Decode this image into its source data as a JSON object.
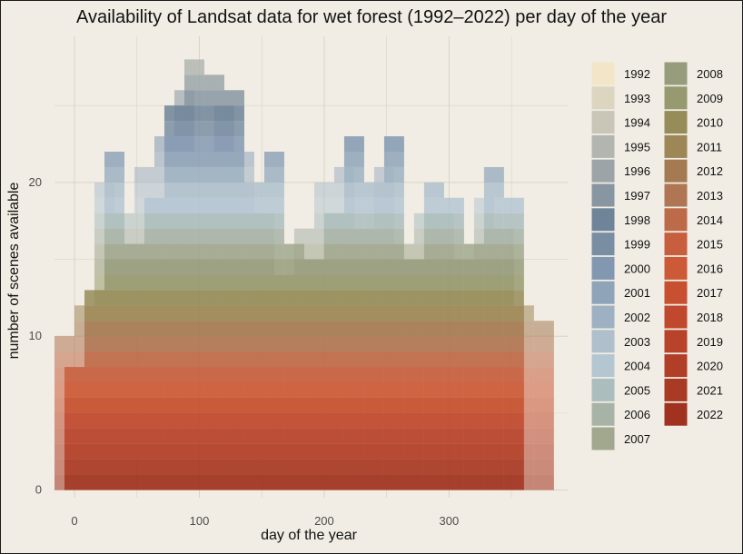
{
  "chart_data": {
    "type": "bar",
    "stacked": true,
    "title": "Availability of Landsat data for wet forest (1992–2022) per day of the year",
    "xlabel": "day of the year",
    "ylabel": "number of scenes available",
    "xlim": [
      -16,
      395
    ],
    "ylim": [
      -0.5,
      29.5
    ],
    "xticks": [
      0,
      100,
      200,
      300
    ],
    "yticks": [
      0,
      10,
      20
    ],
    "bin_width": 16,
    "bin_centers": [
      0,
      16,
      32,
      48,
      64,
      80,
      96,
      112,
      128,
      144,
      160,
      176,
      192,
      208,
      224,
      240,
      256,
      272,
      288,
      304,
      320,
      336,
      352
    ],
    "totals": [
      8,
      13,
      22,
      16,
      19,
      25,
      28,
      27,
      26,
      20,
      22,
      16,
      15,
      18,
      23,
      20,
      23,
      15,
      20,
      19,
      16,
      21,
      19
    ],
    "half_shift_totals": [
      10,
      12,
      20,
      18,
      21,
      23,
      26,
      22,
      25,
      22,
      18,
      14,
      17,
      20,
      21,
      17,
      21,
      16,
      18,
      18,
      15,
      19,
      17,
      12,
      11
    ],
    "years": [
      "1992",
      "1993",
      "1994",
      "1995",
      "1996",
      "1997",
      "1998",
      "1999",
      "2000",
      "2001",
      "2002",
      "2003",
      "2004",
      "2005",
      "2006",
      "2007",
      "2008",
      "2009",
      "2010",
      "2011",
      "2012",
      "2013",
      "2014",
      "2015",
      "2016",
      "2017",
      "2018",
      "2019",
      "2020",
      "2021",
      "2022"
    ],
    "year_colors": [
      "#f3e6c8",
      "#dcd5c0",
      "#c9c6b8",
      "#b3b6b0",
      "#9ca4a8",
      "#8896a1",
      "#6f8499",
      "#7a8ea3",
      "#8298b0",
      "#8fa3b9",
      "#9eb1c2",
      "#afbfcc",
      "#b4c6d2",
      "#abbdbd",
      "#a8b3a8",
      "#a1a88e",
      "#979c7d",
      "#979a6e",
      "#958c59",
      "#9d8756",
      "#a47a52",
      "#b07552",
      "#bd6a48",
      "#c75f3e",
      "#cc5a36",
      "#c6502f",
      "#bf482d",
      "#b8432a",
      "#b13e27",
      "#a93a24",
      "#a0321f"
    ]
  },
  "legend": {
    "col1": [
      "1992",
      "1993",
      "1994",
      "1995",
      "1996",
      "1997",
      "1998",
      "1999",
      "2000",
      "2001",
      "2002",
      "2003",
      "2004",
      "2005",
      "2006",
      "2007"
    ],
    "col2": [
      "2008",
      "2009",
      "2010",
      "2011",
      "2012",
      "2013",
      "2014",
      "2015",
      "2016",
      "2017",
      "2018",
      "2019",
      "2020",
      "2021",
      "2022"
    ]
  }
}
